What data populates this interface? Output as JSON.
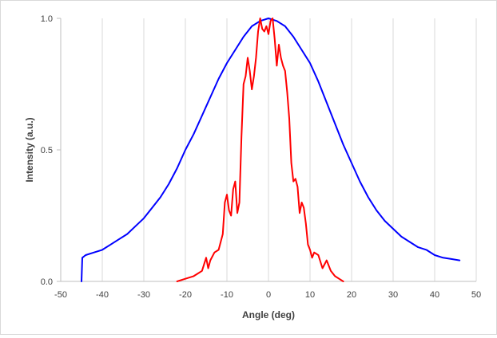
{
  "chart_data": {
    "type": "line",
    "title": "",
    "xlabel": "Angle (deg)",
    "ylabel": "Intensity (a.u.)",
    "xlim": [
      -50,
      50
    ],
    "ylim": [
      0,
      1
    ],
    "xticks": [
      -50,
      -40,
      -30,
      -20,
      -10,
      0,
      10,
      20,
      30,
      40,
      50
    ],
    "yticks": [
      0,
      0.5,
      1
    ],
    "ytick_labels": [
      "0.0",
      "0.5",
      "1.0"
    ],
    "grid": "vertical",
    "legend": "none",
    "series": [
      {
        "color": "#0000ff",
        "x": [
          -45,
          -44.8,
          -44,
          -42,
          -40,
          -38,
          -36,
          -34,
          -32,
          -30,
          -28,
          -26,
          -24,
          -22,
          -20,
          -18,
          -16,
          -14,
          -12,
          -10,
          -8,
          -6,
          -4,
          -2,
          0,
          2,
          4,
          6,
          8,
          10,
          12,
          14,
          16,
          18,
          20,
          22,
          24,
          26,
          28,
          30,
          32,
          34,
          36,
          38,
          40,
          42,
          44,
          46
        ],
        "y": [
          0.0,
          0.09,
          0.1,
          0.11,
          0.12,
          0.14,
          0.16,
          0.18,
          0.21,
          0.24,
          0.28,
          0.32,
          0.37,
          0.43,
          0.5,
          0.56,
          0.63,
          0.7,
          0.77,
          0.83,
          0.88,
          0.93,
          0.97,
          0.99,
          1.0,
          0.99,
          0.97,
          0.93,
          0.88,
          0.83,
          0.76,
          0.68,
          0.6,
          0.52,
          0.45,
          0.38,
          0.32,
          0.27,
          0.23,
          0.2,
          0.17,
          0.15,
          0.13,
          0.12,
          0.1,
          0.09,
          0.085,
          0.08
        ]
      },
      {
        "color": "#ff0000",
        "x": [
          -22,
          -20,
          -18,
          -17,
          -16,
          -15,
          -14.5,
          -14,
          -13,
          -12,
          -11,
          -10.5,
          -10,
          -9.5,
          -9,
          -8.5,
          -8,
          -7.5,
          -7,
          -6.5,
          -6,
          -5.5,
          -5,
          -4.5,
          -4,
          -3.5,
          -3,
          -2.5,
          -2,
          -1.5,
          -1,
          -0.5,
          0,
          0.5,
          1,
          1.5,
          2,
          2.5,
          3,
          3.5,
          4,
          4.5,
          5,
          5.5,
          6,
          6.5,
          7,
          7.5,
          8,
          8.5,
          9,
          9.5,
          10,
          10.5,
          11,
          12,
          13,
          14,
          15,
          16,
          17,
          18
        ],
        "y": [
          0.0,
          0.01,
          0.02,
          0.03,
          0.04,
          0.09,
          0.05,
          0.08,
          0.11,
          0.12,
          0.18,
          0.3,
          0.33,
          0.27,
          0.25,
          0.35,
          0.38,
          0.26,
          0.3,
          0.55,
          0.75,
          0.78,
          0.85,
          0.8,
          0.73,
          0.78,
          0.85,
          0.95,
          1.0,
          0.96,
          0.95,
          0.97,
          0.94,
          0.99,
          1.0,
          0.92,
          0.82,
          0.9,
          0.85,
          0.82,
          0.8,
          0.72,
          0.62,
          0.45,
          0.38,
          0.39,
          0.36,
          0.26,
          0.3,
          0.28,
          0.22,
          0.14,
          0.12,
          0.09,
          0.11,
          0.1,
          0.05,
          0.08,
          0.04,
          0.02,
          0.01,
          0.0
        ]
      }
    ]
  }
}
